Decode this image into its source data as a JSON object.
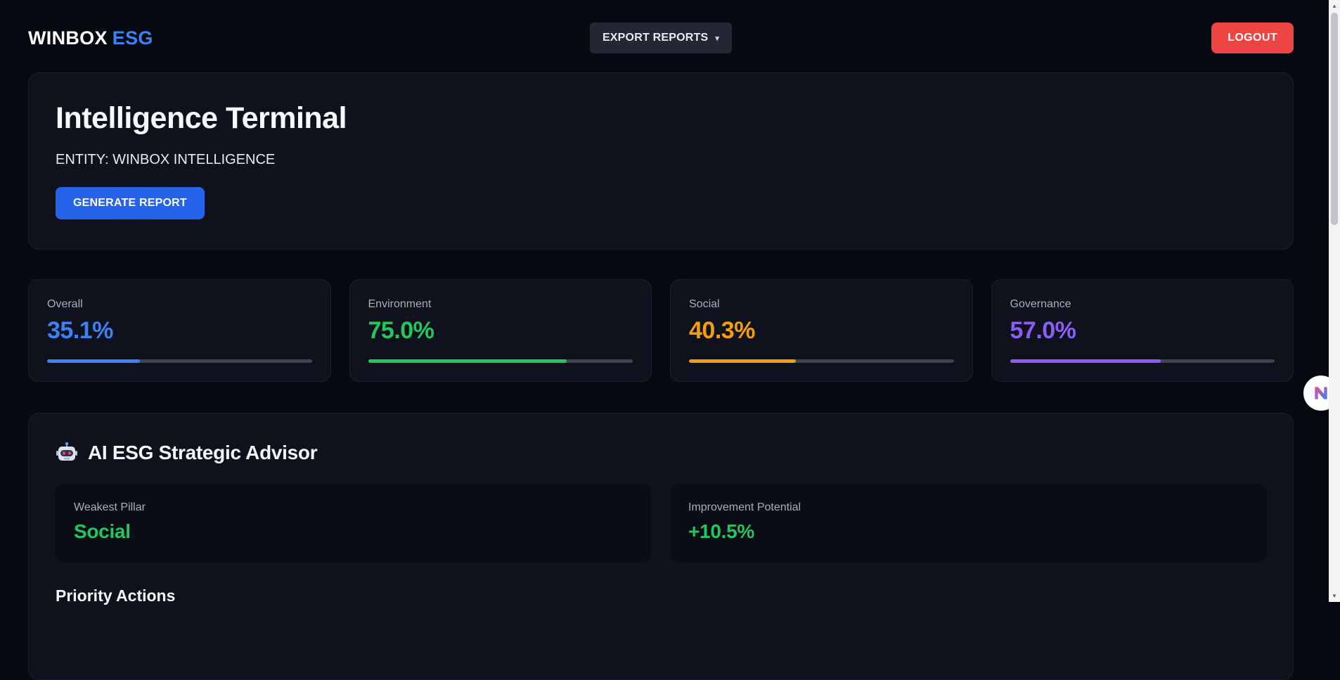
{
  "header": {
    "brand_primary": "WINBOX",
    "brand_accent": "ESG",
    "export_button": "EXPORT REPORTS",
    "logout_button": "LOGOUT"
  },
  "hero": {
    "title": "Intelligence Terminal",
    "entity_label": "ENTITY: WINBOX INTELLIGENCE",
    "generate_button": "GENERATE REPORT"
  },
  "stats": [
    {
      "label": "Overall",
      "value": "35.1%",
      "percent": 35.1,
      "color": "#3b82f6"
    },
    {
      "label": "Environment",
      "value": "75.0%",
      "percent": 75.0,
      "color": "#22c55e"
    },
    {
      "label": "Social",
      "value": "40.3%",
      "percent": 40.3,
      "color": "#f59e0b"
    },
    {
      "label": "Governance",
      "value": "57.0%",
      "percent": 57.0,
      "color": "#8b5cf6"
    }
  ],
  "advisor": {
    "title": "AI ESG Strategic Advisor",
    "cards": [
      {
        "label": "Weakest Pillar",
        "value": "Social",
        "color": "#22c55e"
      },
      {
        "label": "Improvement Potential",
        "value": "+10.5%",
        "color": "#22c55e"
      }
    ],
    "priority_heading": "Priority Actions"
  },
  "icons": {
    "caret_down": "▾",
    "scroll_up": "▲",
    "scroll_down": "▼",
    "robot": "robot-icon",
    "assistant_logo": "assistant-logo-icon"
  },
  "colors": {
    "page_background": "#080a12",
    "card_background": "#0f121c",
    "accent_blue": "#3b82f6",
    "green": "#22c55e",
    "orange": "#f59e0b",
    "purple": "#8b5cf6",
    "logout_red": "#ef4444",
    "generate_blue": "#2563eb"
  }
}
